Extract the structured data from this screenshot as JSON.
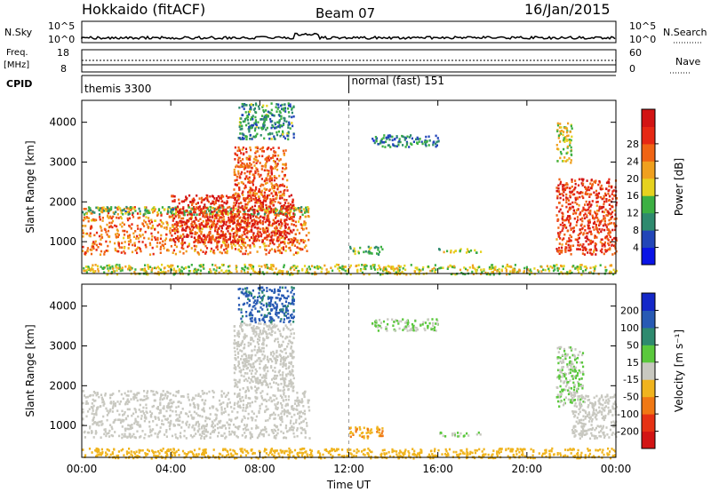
{
  "header": {
    "station": "Hokkaido (fitACF)",
    "beam": "Beam 07",
    "date": "16/Jan/2015"
  },
  "strips": {
    "nsky": {
      "label": "N.Sky",
      "tick_top": "10^5",
      "tick_bottom": "10^0",
      "right_tick_top": "10^5",
      "right_tick_bottom": "10^0",
      "right_label": "N.Search"
    },
    "freq": {
      "label_line1": "Freq.",
      "label_line2": "[MHz]",
      "tick_top": "18",
      "tick_bottom": "8",
      "right_tick_top": "60",
      "right_tick_bottom": "0",
      "right_label": "Nave"
    },
    "cpid": {
      "label": "CPID",
      "segments": [
        {
          "label": "themis 3300",
          "start_h": 0,
          "end_h": 12
        },
        {
          "label": "normal (fast) 151",
          "start_h": 12,
          "end_h": 24
        }
      ]
    }
  },
  "colorbars": {
    "power": {
      "label": "Power [dB]",
      "ticks": [
        "4",
        "8",
        "12",
        "16",
        "20",
        "24",
        "28"
      ],
      "colors": [
        "#0a14e6",
        "#2246b8",
        "#2e8a6e",
        "#3cb043",
        "#e6d21e",
        "#f0a01e",
        "#f06414",
        "#e62814",
        "#d21414"
      ]
    },
    "velocity": {
      "label": "Velocity [m s⁻¹]",
      "ticks": [
        "200",
        "100",
        "50",
        "15",
        "-15",
        "-50",
        "-100",
        "-200"
      ],
      "colors": [
        "#1428c8",
        "#285ab4",
        "#2e8a6e",
        "#5ac83c",
        "#c8c8c0",
        "#f0b41e",
        "#f07814",
        "#e63214",
        "#d21414"
      ]
    }
  },
  "chart_data": [
    {
      "type": "heatmap",
      "title": "",
      "quantity": "Power [dB]",
      "ylabel": "Slant Range [km]",
      "xlabel": "Time UT",
      "xlim_hours": [
        0,
        24
      ],
      "ylim": [
        200,
        4550
      ],
      "yticks": [
        1000,
        2000,
        3000,
        4000
      ],
      "xtick_labels": [
        "00:00",
        "04:00",
        "08:00",
        "12:00",
        "16:00",
        "20:00",
        "00:00"
      ],
      "color_range": [
        0,
        32
      ],
      "regions": [
        {
          "t": [
            0,
            10.2
          ],
          "range": [
            700,
            1900
          ],
          "value": 22
        },
        {
          "t": [
            0,
            10.2
          ],
          "range": [
            1700,
            1900
          ],
          "value": 12
        },
        {
          "t": [
            4,
            9.5
          ],
          "range": [
            1000,
            2200
          ],
          "value": 27
        },
        {
          "t": [
            6.8,
            9.2
          ],
          "range": [
            2000,
            3400
          ],
          "value": 24
        },
        {
          "t": [
            7,
            9.5
          ],
          "range": [
            3600,
            4500
          ],
          "value": 10
        },
        {
          "t": [
            21.3,
            24
          ],
          "range": [
            700,
            2600
          ],
          "value": 26
        },
        {
          "t": [
            21.3,
            22
          ],
          "range": [
            3000,
            4000
          ],
          "value": 16
        },
        {
          "t": [
            13,
            16
          ],
          "range": [
            3400,
            3700
          ],
          "value": 8
        },
        {
          "t": [
            12,
            13.5
          ],
          "range": [
            700,
            900
          ],
          "value": 12
        },
        {
          "t": [
            16,
            18
          ],
          "range": [
            750,
            850
          ],
          "value": 14
        },
        {
          "t": [
            0,
            24
          ],
          "range": [
            200,
            450
          ],
          "value": 16
        }
      ]
    },
    {
      "type": "heatmap",
      "title": "",
      "quantity": "Velocity [m s⁻¹]",
      "ylabel": "Slant Range [km]",
      "xlabel": "Time UT",
      "xlim_hours": [
        0,
        24
      ],
      "ylim": [
        200,
        4550
      ],
      "yticks": [
        1000,
        2000,
        3000,
        4000
      ],
      "xtick_labels": [
        "00:00",
        "04:00",
        "08:00",
        "12:00",
        "16:00",
        "20:00",
        "00:00"
      ],
      "color_range": [
        -250,
        250
      ],
      "regions": [
        {
          "t": [
            0,
            10.2
          ],
          "range": [
            700,
            1900
          ],
          "value": 0
        },
        {
          "t": [
            6.8,
            9.5
          ],
          "range": [
            1900,
            3600
          ],
          "value": 0
        },
        {
          "t": [
            7,
            9.5
          ],
          "range": [
            3600,
            4500
          ],
          "value": 150
        },
        {
          "t": [
            21.3,
            22.5
          ],
          "range": [
            1500,
            3000
          ],
          "value": 30
        },
        {
          "t": [
            22,
            24
          ],
          "range": [
            700,
            1800
          ],
          "value": 0
        },
        {
          "t": [
            13,
            16
          ],
          "range": [
            3400,
            3700
          ],
          "value": 30
        },
        {
          "t": [
            12,
            13.5
          ],
          "range": [
            700,
            1000
          ],
          "value": -80
        },
        {
          "t": [
            16,
            18
          ],
          "range": [
            750,
            850
          ],
          "value": 30
        },
        {
          "t": [
            0,
            24
          ],
          "range": [
            200,
            450
          ],
          "value": -50
        }
      ]
    }
  ]
}
